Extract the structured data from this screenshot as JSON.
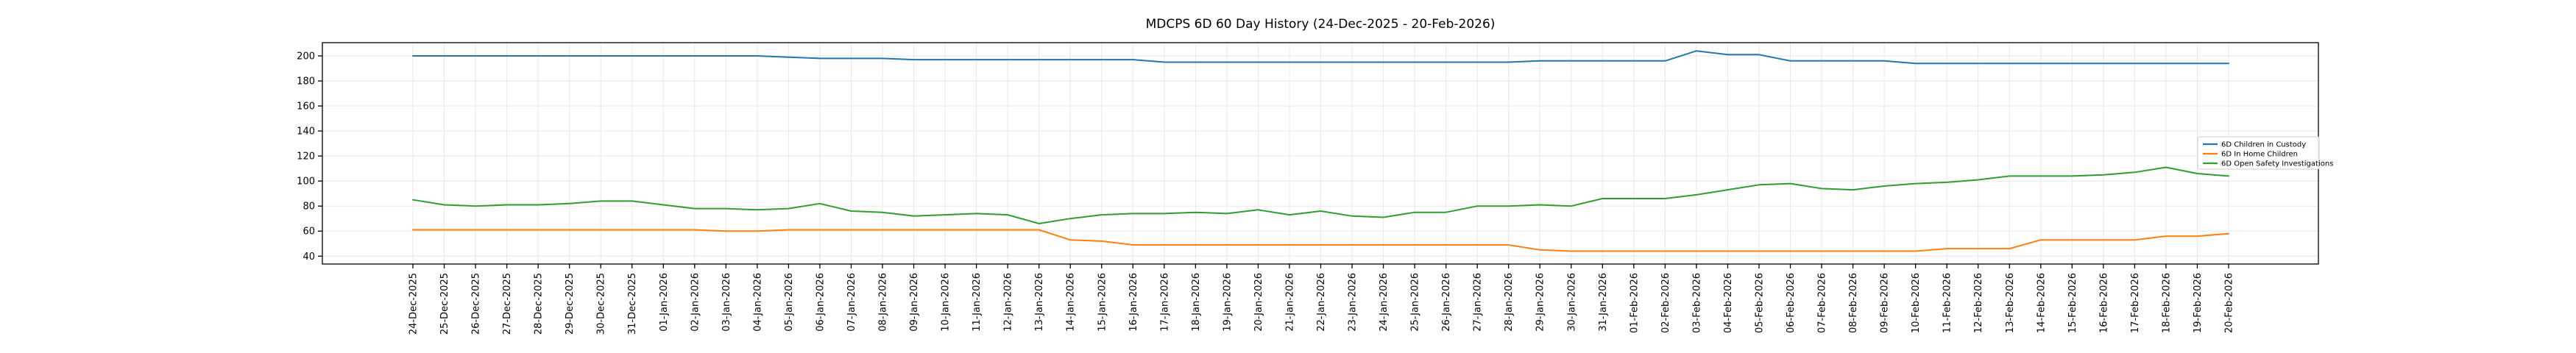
{
  "title": "MDCPS 6D 60 Day History (24-Dec-2025 - 20-Feb-2026)",
  "chart_data": {
    "type": "line",
    "title": "MDCPS 6D 60 Day History (24-Dec-2025 - 20-Feb-2026)",
    "grid": true,
    "legend_position": "center right",
    "background": "#ffffff",
    "grid_color": "#e8e8e8",
    "spine_color": "#000000",
    "ylim": [
      33.7,
      210.6
    ],
    "yticks": [
      40,
      60,
      80,
      100,
      120,
      140,
      160,
      180,
      200
    ],
    "x_tick_labels": [
      "24-Dec-2025",
      "25-Dec-2025",
      "26-Dec-2025",
      "27-Dec-2025",
      "28-Dec-2025",
      "29-Dec-2025",
      "30-Dec-2025",
      "31-Dec-2025",
      "01-Jan-2026",
      "02-Jan-2026",
      "03-Jan-2026",
      "04-Jan-2026",
      "05-Jan-2026",
      "06-Jan-2026",
      "07-Jan-2026",
      "08-Jan-2026",
      "09-Jan-2026",
      "10-Jan-2026",
      "11-Jan-2026",
      "12-Jan-2026",
      "13-Jan-2026",
      "14-Jan-2026",
      "15-Jan-2026",
      "16-Jan-2026",
      "17-Jan-2026",
      "18-Jan-2026",
      "19-Jan-2026",
      "20-Jan-2026",
      "21-Jan-2026",
      "22-Jan-2026",
      "23-Jan-2026",
      "24-Jan-2026",
      "25-Jan-2026",
      "26-Jan-2026",
      "27-Jan-2026",
      "28-Jan-2026",
      "29-Jan-2026",
      "30-Jan-2026",
      "31-Jan-2026",
      "01-Feb-2026",
      "02-Feb-2026",
      "03-Feb-2026",
      "04-Feb-2026",
      "05-Feb-2026",
      "06-Feb-2026",
      "07-Feb-2026",
      "08-Feb-2026",
      "09-Feb-2026",
      "10-Feb-2026",
      "11-Feb-2026",
      "12-Feb-2026",
      "13-Feb-2026",
      "14-Feb-2026",
      "15-Feb-2026",
      "16-Feb-2026",
      "17-Feb-2026",
      "18-Feb-2026",
      "19-Feb-2026",
      "20-Feb-2026"
    ],
    "series": [
      {
        "name": "6D Children in Custody",
        "color": "#1f77b4",
        "values": [
          200,
          200,
          200,
          200,
          200,
          200,
          200,
          200,
          200,
          200,
          200,
          200,
          199,
          198,
          198,
          198,
          197,
          197,
          197,
          197,
          197,
          197,
          197,
          197,
          195,
          195,
          195,
          195,
          195,
          195,
          195,
          195,
          195,
          195,
          195,
          195,
          196,
          196,
          196,
          196,
          196,
          204,
          201,
          201,
          196,
          196,
          196,
          196,
          194,
          194,
          194,
          194,
          194,
          194,
          194,
          194,
          194,
          194,
          194
        ]
      },
      {
        "name": "6D In Home Children",
        "color": "#ff7f0e",
        "values": [
          61,
          61,
          61,
          61,
          61,
          61,
          61,
          61,
          61,
          61,
          60,
          60,
          61,
          61,
          61,
          61,
          61,
          61,
          61,
          61,
          61,
          53,
          52,
          49,
          49,
          49,
          49,
          49,
          49,
          49,
          49,
          49,
          49,
          49,
          49,
          49,
          45,
          44,
          44,
          44,
          44,
          44,
          44,
          44,
          44,
          44,
          44,
          44,
          44,
          46,
          46,
          46,
          53,
          53,
          53,
          53,
          56,
          56,
          58
        ]
      },
      {
        "name": "6D Open Safety Investigations",
        "color": "#2ca02c",
        "values": [
          85,
          81,
          80,
          81,
          81,
          82,
          84,
          84,
          81,
          78,
          78,
          77,
          78,
          82,
          76,
          75,
          72,
          73,
          74,
          73,
          66,
          70,
          73,
          74,
          74,
          75,
          74,
          77,
          73,
          76,
          72,
          71,
          75,
          75,
          80,
          80,
          81,
          80,
          86,
          86,
          86,
          89,
          93,
          97,
          98,
          94,
          93,
          96,
          98,
          99,
          101,
          104,
          104,
          104,
          105,
          107,
          111,
          106,
          104
        ]
      }
    ]
  }
}
